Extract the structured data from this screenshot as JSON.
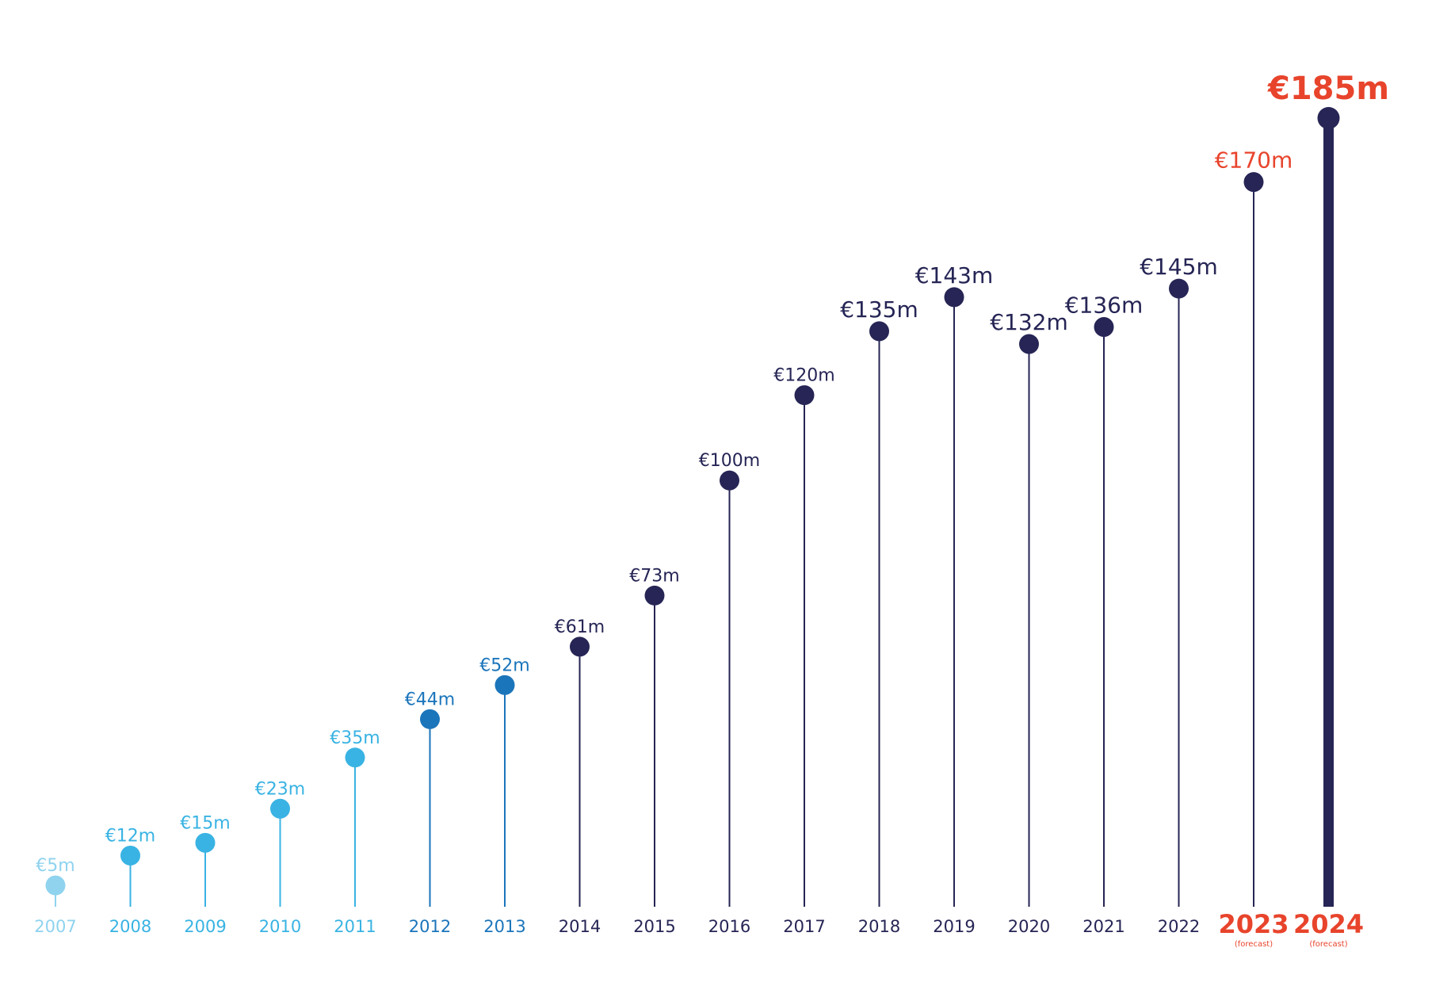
{
  "chart_data": {
    "type": "lollipop",
    "title": "",
    "xlabel": "",
    "ylabel": "",
    "ylim": [
      0,
      185
    ],
    "grid": false,
    "legend": "none",
    "colors": {
      "light": "#8fd3ef",
      "sky": "#39b3e3",
      "blue": "#1b75bb",
      "navy": "#262555",
      "red": "#e8442c"
    },
    "points": [
      {
        "year": "2007",
        "value": 5,
        "label": "€5m",
        "color": "light"
      },
      {
        "year": "2008",
        "value": 12,
        "label": "€12m",
        "color": "sky"
      },
      {
        "year": "2009",
        "value": 15,
        "label": "€15m",
        "color": "sky"
      },
      {
        "year": "2010",
        "value": 23,
        "label": "€23m",
        "color": "sky"
      },
      {
        "year": "2011",
        "value": 35,
        "label": "€35m",
        "color": "sky"
      },
      {
        "year": "2012",
        "value": 44,
        "label": "€44m",
        "color": "blue"
      },
      {
        "year": "2013",
        "value": 52,
        "label": "€52m",
        "color": "blue"
      },
      {
        "year": "2014",
        "value": 61,
        "label": "€61m",
        "color": "navy"
      },
      {
        "year": "2015",
        "value": 73,
        "label": "€73m",
        "color": "navy"
      },
      {
        "year": "2016",
        "value": 100,
        "label": "€100m",
        "color": "navy"
      },
      {
        "year": "2017",
        "value": 120,
        "label": "€120m",
        "color": "navy"
      },
      {
        "year": "2018",
        "value": 135,
        "label": "€135m",
        "color": "navy"
      },
      {
        "year": "2019",
        "value": 143,
        "label": "€143m",
        "color": "navy"
      },
      {
        "year": "2020",
        "value": 132,
        "label": "€132m",
        "color": "navy"
      },
      {
        "year": "2021",
        "value": 136,
        "label": "€136m",
        "color": "navy"
      },
      {
        "year": "2022",
        "value": 145,
        "label": "€145m",
        "color": "navy"
      },
      {
        "year": "2023",
        "value": 170,
        "label": "€170m",
        "color": "navy",
        "labelColor": "red",
        "yearColor": "red",
        "note": "(forecast)"
      },
      {
        "year": "2024",
        "value": 185,
        "label": "€185m",
        "color": "navy",
        "labelColor": "red",
        "yearColor": "red",
        "note": "(forecast)"
      }
    ]
  }
}
